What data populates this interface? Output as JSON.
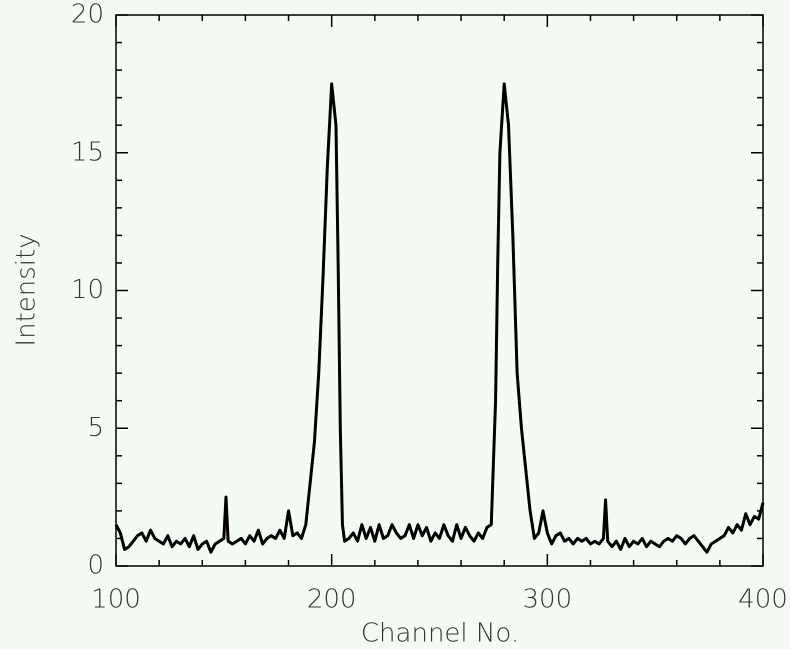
{
  "chart_data": {
    "type": "line",
    "x_label": "Channel No.",
    "y_label": "Intensity",
    "x": [
      100,
      102,
      104,
      106,
      108,
      110,
      112,
      114,
      116,
      118,
      120,
      122,
      124,
      126,
      128,
      130,
      132,
      134,
      136,
      138,
      140,
      142,
      144,
      146,
      148,
      150,
      151,
      152,
      154,
      156,
      158,
      160,
      162,
      164,
      166,
      168,
      170,
      172,
      174,
      176,
      178,
      180,
      182,
      184,
      186,
      188,
      190,
      192,
      194,
      196,
      198,
      200,
      202,
      203,
      204,
      205,
      206,
      208,
      210,
      212,
      214,
      216,
      218,
      220,
      222,
      224,
      226,
      228,
      230,
      232,
      234,
      236,
      238,
      240,
      242,
      244,
      246,
      248,
      250,
      252,
      254,
      256,
      258,
      260,
      262,
      264,
      266,
      268,
      270,
      272,
      274,
      276,
      277,
      278,
      280,
      282,
      284,
      286,
      288,
      290,
      292,
      294,
      296,
      298,
      300,
      302,
      304,
      306,
      308,
      310,
      312,
      314,
      316,
      318,
      320,
      322,
      324,
      326,
      327,
      328,
      330,
      332,
      334,
      336,
      338,
      340,
      342,
      344,
      346,
      348,
      350,
      352,
      354,
      356,
      358,
      360,
      362,
      364,
      366,
      368,
      370,
      372,
      374,
      376,
      378,
      380,
      382,
      384,
      386,
      388,
      390,
      392,
      394,
      396,
      398,
      400
    ],
    "series": [
      {
        "color": "#000000",
        "values": [
          1.5,
          1.2,
          0.6,
          0.7,
          0.9,
          1.1,
          1.2,
          0.9,
          1.3,
          1.0,
          0.9,
          0.8,
          1.1,
          0.7,
          0.9,
          0.8,
          1.0,
          0.7,
          1.1,
          0.6,
          0.8,
          0.9,
          0.5,
          0.8,
          0.9,
          1.0,
          2.5,
          0.9,
          0.8,
          0.9,
          1.0,
          0.8,
          1.1,
          0.9,
          1.3,
          0.8,
          1.0,
          1.1,
          1.0,
          1.3,
          1.0,
          2.0,
          1.1,
          1.2,
          1.0,
          1.5,
          3.0,
          4.5,
          7.0,
          10.5,
          14.5,
          17.5,
          16.0,
          11.0,
          5.0,
          1.5,
          0.9,
          1.0,
          1.2,
          0.9,
          1.5,
          1.0,
          1.4,
          0.9,
          1.5,
          1.0,
          1.1,
          1.5,
          1.2,
          1.0,
          1.1,
          1.5,
          1.0,
          1.5,
          1.1,
          1.4,
          0.9,
          1.2,
          1.0,
          1.5,
          1.1,
          0.9,
          1.5,
          1.0,
          1.4,
          1.1,
          0.9,
          1.2,
          1.0,
          1.4,
          1.5,
          6.0,
          11.0,
          15.0,
          17.5,
          16.0,
          12.0,
          7.0,
          5.0,
          3.5,
          2.0,
          1.0,
          1.2,
          2.0,
          1.2,
          0.8,
          1.1,
          1.2,
          0.9,
          1.0,
          0.8,
          1.0,
          0.9,
          1.0,
          0.8,
          0.9,
          0.8,
          1.0,
          2.4,
          0.9,
          0.7,
          0.9,
          0.6,
          1.0,
          0.7,
          0.9,
          0.8,
          1.0,
          0.7,
          0.9,
          0.8,
          0.7,
          0.9,
          1.0,
          0.9,
          1.1,
          1.0,
          0.8,
          1.0,
          1.1,
          0.9,
          0.7,
          0.5,
          0.8,
          0.9,
          1.0,
          1.1,
          1.4,
          1.2,
          1.5,
          1.3,
          1.9,
          1.5,
          1.8,
          1.7,
          2.3
        ]
      }
    ],
    "xlim": [
      100,
      400
    ],
    "xticks": [
      100,
      200,
      300,
      400
    ],
    "ylim": [
      0,
      20
    ],
    "yticks": [
      0,
      5,
      10,
      15,
      20
    ]
  }
}
